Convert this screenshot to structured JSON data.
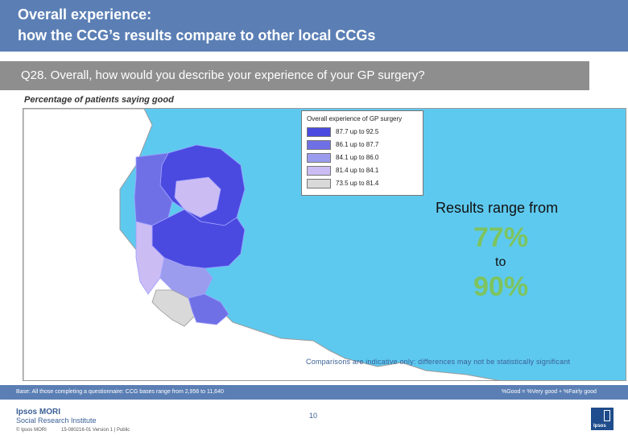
{
  "header": {
    "line1": "Overall experience:",
    "line2": "how the CCG’s results compare to other local CCGs"
  },
  "question": "Q28. Overall, how would you describe your experience of your GP surgery?",
  "subtitle": "Percentage of patients saying good",
  "legend": {
    "title": "Overall experience of GP surgery",
    "bands": [
      {
        "label": "87.7 up to 92.5",
        "color": "#4a4ae0"
      },
      {
        "label": "86.1 up to 87.7",
        "color": "#7070e6"
      },
      {
        "label": "84.1 up to 86.0",
        "color": "#9c9cee"
      },
      {
        "label": "81.4 up to 84.1",
        "color": "#cbbcf4"
      },
      {
        "label": "73.5 up to 81.4",
        "color": "#d9d9d9"
      }
    ]
  },
  "results": {
    "label": "Results range from",
    "low": "77%",
    "to": "to",
    "high": "90%"
  },
  "caveat": "Comparisons are indicative only: differences may not be statistically significant",
  "footer": {
    "base": "Base: All those completing a questionnaire: CCG bases range from 2,956 to 11,640",
    "good_definition": "%Good = %Very good + %Fairly good",
    "page_number": "10"
  },
  "branding": {
    "name": "Ipsos MORI",
    "unit": "Social Research Institute",
    "copyright": "© Ipsos MORI",
    "version": "15-080216-01 Version 1 | Public",
    "logo_text": "Ipsos"
  },
  "colors": {
    "header_bg": "#5b7fb5",
    "question_bg": "#8e8e8e",
    "sea": "#5ec9ef",
    "land": "#ffffff",
    "accent_green": "#7dc45f"
  }
}
